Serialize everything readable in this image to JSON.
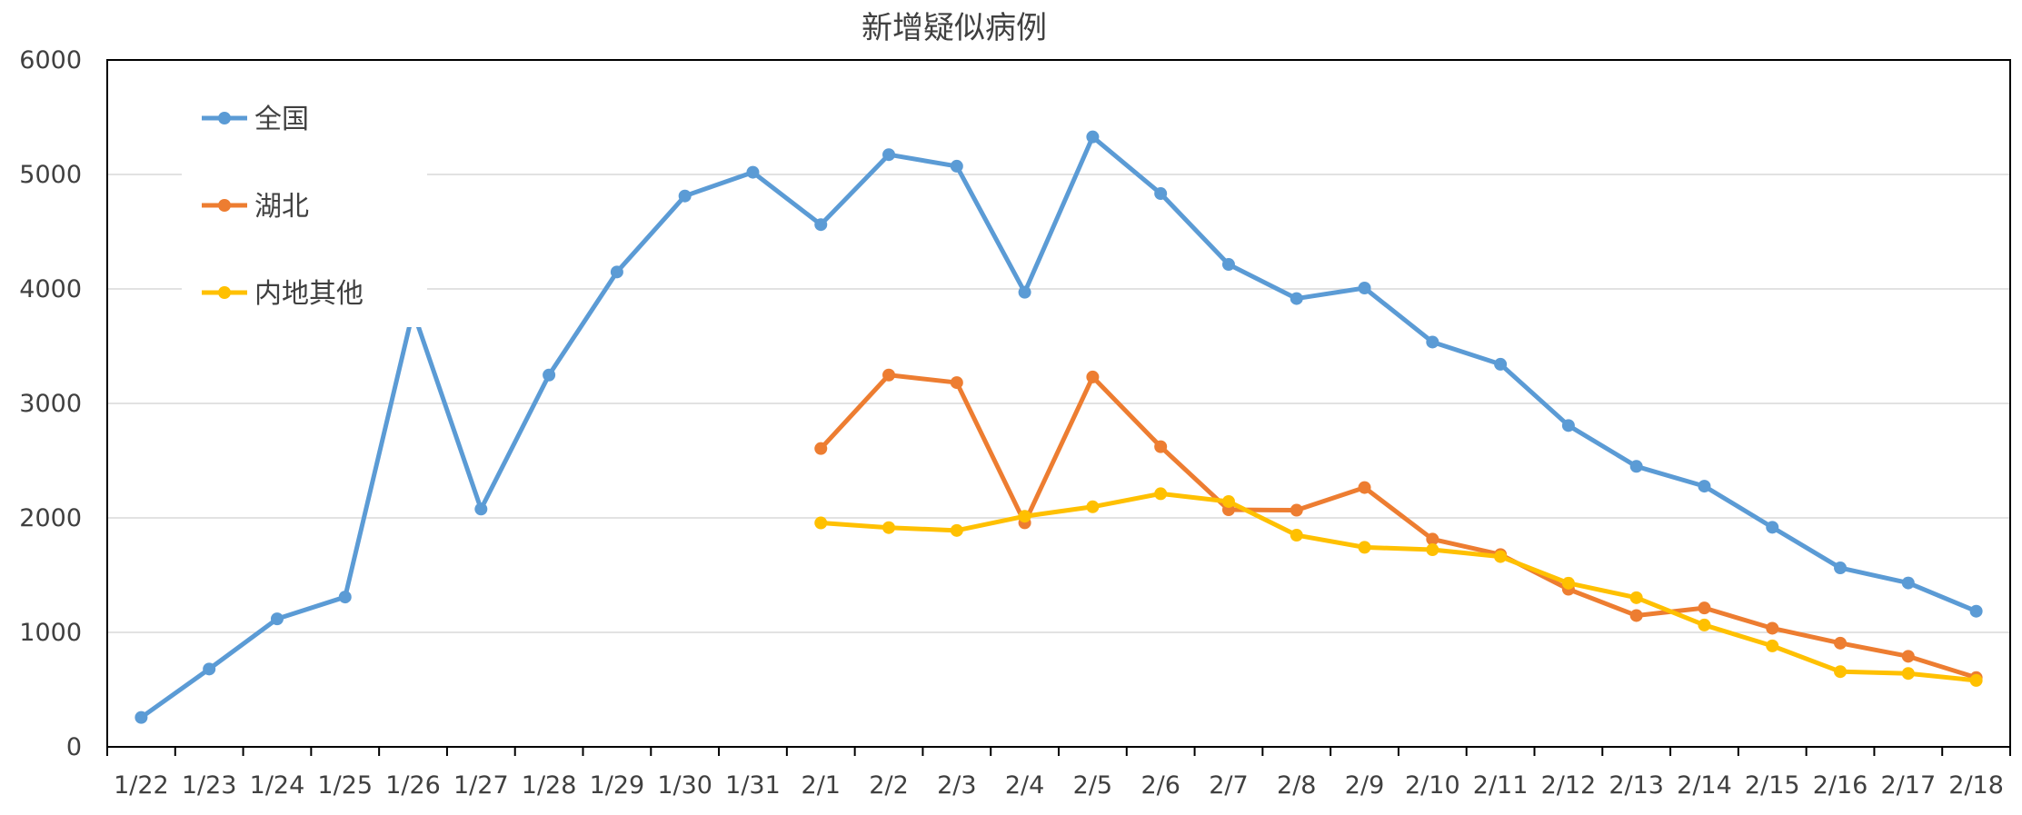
{
  "chart_data": {
    "type": "line",
    "title": "新增疑似病例",
    "xlabel": "",
    "ylabel": "",
    "ylim": [
      0,
      6000
    ],
    "yticks": [
      0,
      1000,
      2000,
      3000,
      4000,
      5000,
      6000
    ],
    "grid": true,
    "legend_position": "top-left-inside",
    "categories": [
      "1/22",
      "1/23",
      "1/24",
      "1/25",
      "1/26",
      "1/27",
      "1/28",
      "1/29",
      "1/30",
      "1/31",
      "2/1",
      "2/2",
      "2/3",
      "2/4",
      "2/5",
      "2/6",
      "2/7",
      "2/8",
      "2/9",
      "2/10",
      "2/11",
      "2/12",
      "2/13",
      "2/14",
      "2/15",
      "2/16",
      "2/17",
      "2/18"
    ],
    "series": [
      {
        "name": "全国",
        "color": "#5b9bd5",
        "values": [
          257,
          680,
          1118,
          1309,
          3806,
          2077,
          3248,
          4148,
          4812,
          5019,
          4562,
          5173,
          5072,
          3971,
          5328,
          4833,
          4214,
          3916,
          4008,
          3536,
          3342,
          2807,
          2450,
          2277,
          1918,
          1563,
          1432,
          1185
        ]
      },
      {
        "name": "湖北",
        "color": "#ed7d31",
        "values": [
          null,
          null,
          null,
          null,
          null,
          null,
          null,
          null,
          null,
          null,
          2606,
          3248,
          3182,
          1957,
          3231,
          2622,
          2071,
          2067,
          2265,
          1814,
          1680,
          1377,
          1147,
          1213,
          1036,
          906,
          791,
          605
        ]
      },
      {
        "name": "内地其他",
        "color": "#ffc000",
        "values": [
          null,
          null,
          null,
          null,
          null,
          null,
          null,
          null,
          null,
          null,
          1956,
          1915,
          1890,
          2014,
          2097,
          2211,
          2143,
          1849,
          1743,
          1722,
          1662,
          1430,
          1303,
          1064,
          882,
          657,
          641,
          580
        ]
      }
    ]
  }
}
